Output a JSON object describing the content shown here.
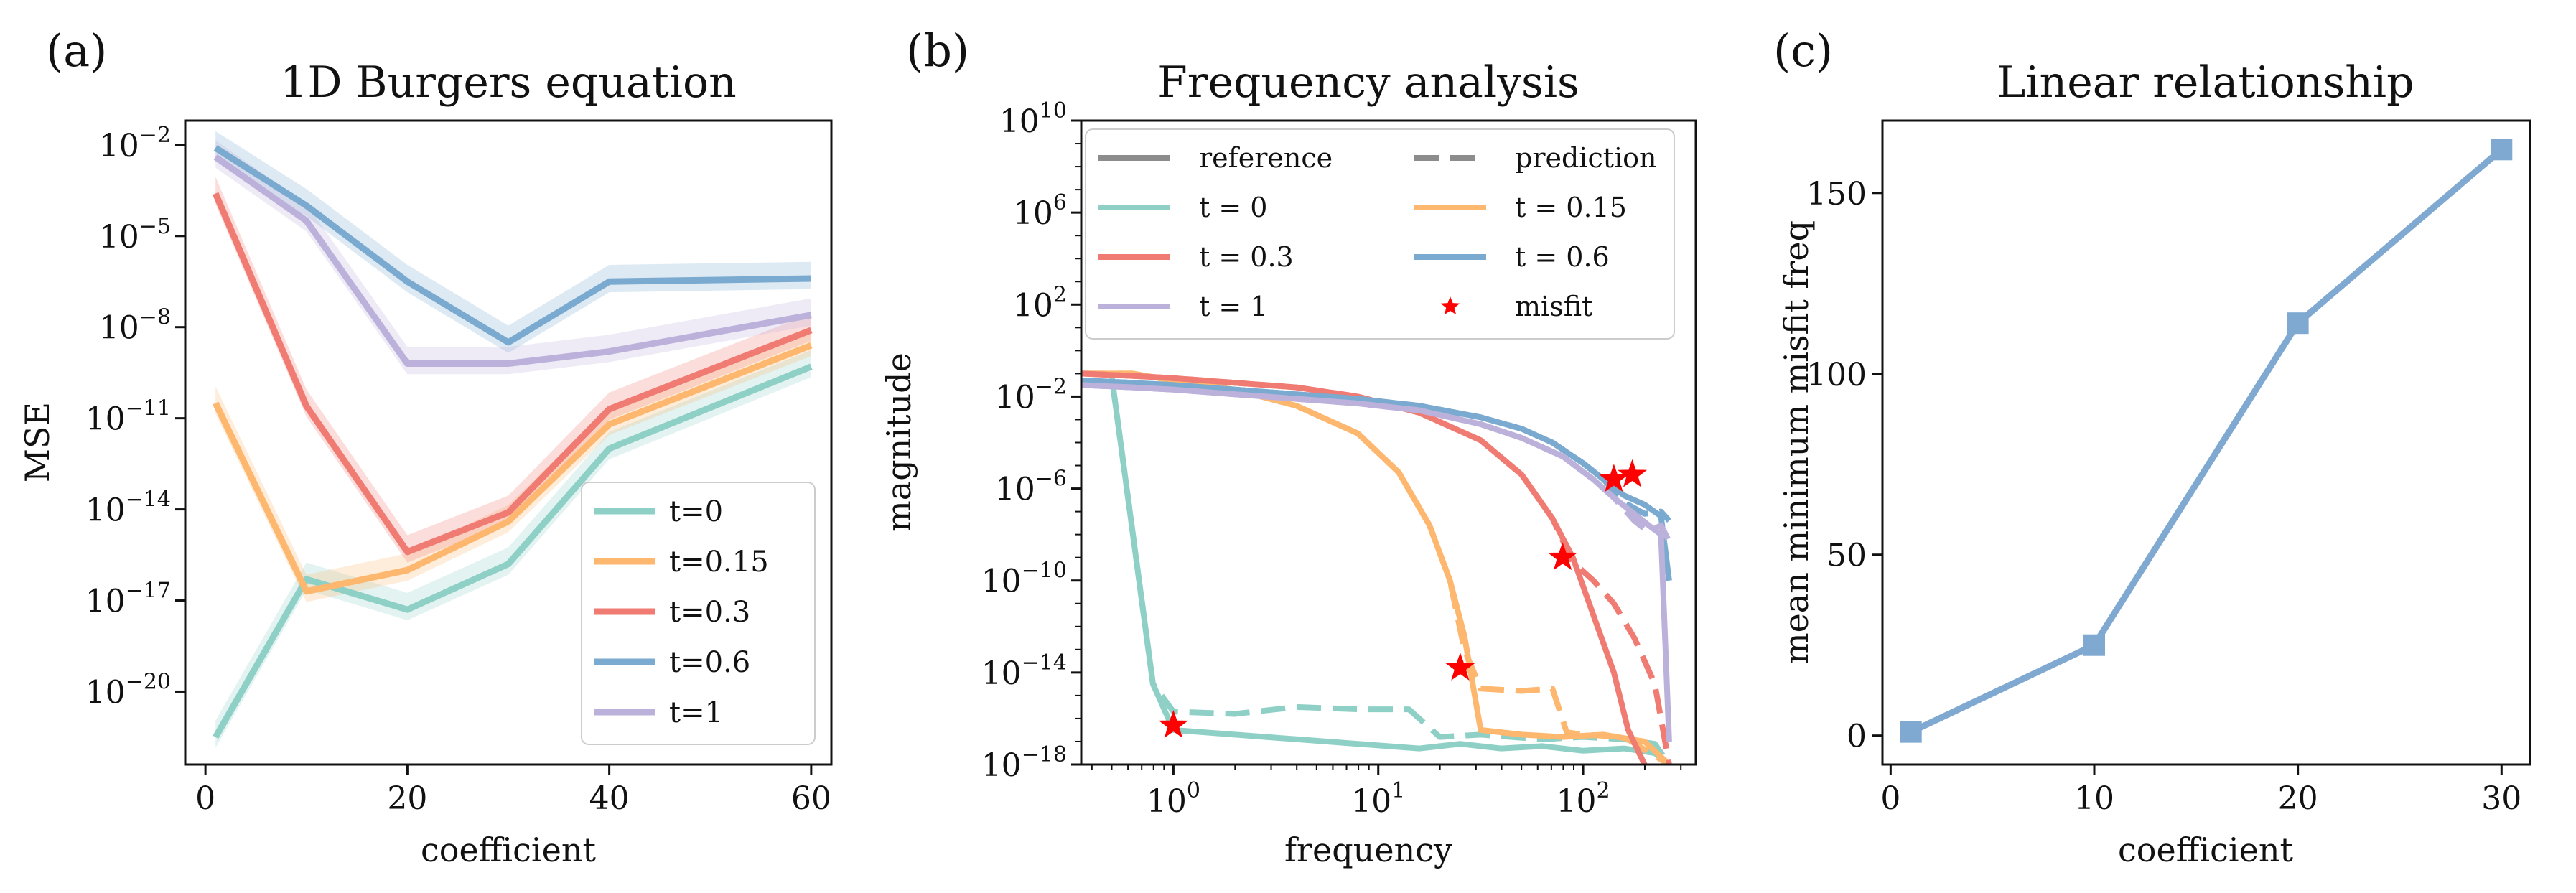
{
  "panels": {
    "a": {
      "label": "(a)",
      "title": "1D Burgers equation",
      "xlabel": "coefficient",
      "ylabel": "MSE"
    },
    "b": {
      "label": "(b)",
      "title": "Frequency analysis",
      "xlabel": "frequency",
      "ylabel": "magnitude"
    },
    "c": {
      "label": "(c)",
      "title": "Linear relationship",
      "xlabel": "coefficient",
      "ylabel": "mean minimum misfit freq"
    }
  },
  "colors": {
    "t0": "#8fd0c6",
    "t015": "#fdb76f",
    "t03": "#f07b72",
    "t06": "#7aaacf",
    "t1": "#bcb1da",
    "reference": "#8c8c8c",
    "misfit": "#ff0000",
    "linear": "#7fa9d1"
  },
  "chart_data": [
    {
      "id": "a",
      "type": "line",
      "title": "1D Burgers equation",
      "xlabel": "coefficient",
      "ylabel": "MSE",
      "xscale": "linear",
      "yscale": "log",
      "xlim": [
        -2,
        62
      ],
      "ylim_log10": [
        -22.4,
        -1.2
      ],
      "xticks": [
        0,
        20,
        40,
        60
      ],
      "yticks": [
        {
          "base": "10",
          "exp": "−2",
          "v": -2
        },
        {
          "base": "10",
          "exp": "−5",
          "v": -5
        },
        {
          "base": "10",
          "exp": "−8",
          "v": -8
        },
        {
          "base": "10",
          "exp": "−11",
          "v": -11
        },
        {
          "base": "10",
          "exp": "−14",
          "v": -14
        },
        {
          "base": "10",
          "exp": "−17",
          "v": -17
        },
        {
          "base": "10",
          "exp": "−20",
          "v": -20
        }
      ],
      "x": [
        1,
        10,
        20,
        30,
        40,
        60
      ],
      "series": [
        {
          "name": "t=0",
          "color_key": "t0",
          "log10_values": [
            -21.5,
            -16.3,
            -17.3,
            -15.8,
            -12.0,
            -9.3
          ]
        },
        {
          "name": "t=0.15",
          "color_key": "t015",
          "log10_values": [
            -10.5,
            -16.7,
            -16.0,
            -14.4,
            -11.2,
            -8.6
          ]
        },
        {
          "name": "t=0.3",
          "color_key": "t03",
          "log10_values": [
            -3.6,
            -10.6,
            -15.4,
            -14.1,
            -10.7,
            -8.1
          ]
        },
        {
          "name": "t=0.6",
          "color_key": "t06",
          "log10_values": [
            -2.1,
            -4.0,
            -6.5,
            -8.5,
            -6.5,
            -6.4
          ]
        },
        {
          "name": "t=1",
          "color_key": "t1",
          "log10_values": [
            -2.4,
            -4.5,
            -9.2,
            -9.2,
            -8.8,
            -7.6
          ]
        }
      ],
      "legend": {
        "position": "lower-right",
        "entries": [
          "t=0",
          "t=0.15",
          "t=0.3",
          "t=0.6",
          "t=1"
        ]
      }
    },
    {
      "id": "b",
      "type": "line",
      "title": "Frequency analysis",
      "xlabel": "frequency",
      "ylabel": "magnitude",
      "xscale": "log",
      "yscale": "log",
      "xlim_log10": [
        -0.45,
        2.55
      ],
      "ylim_log10": [
        -18,
        10
      ],
      "xticks": [
        {
          "base": "10",
          "exp": "0",
          "v": 0
        },
        {
          "base": "10",
          "exp": "1",
          "v": 1
        },
        {
          "base": "10",
          "exp": "2",
          "v": 2
        }
      ],
      "yticks": [
        {
          "base": "10",
          "exp": "−18",
          "v": -18
        },
        {
          "base": "10",
          "exp": "−14",
          "v": -14
        },
        {
          "base": "10",
          "exp": "−10",
          "v": -10
        },
        {
          "base": "10",
          "exp": "−6",
          "v": -6
        },
        {
          "base": "10",
          "exp": "−2",
          "v": -2
        },
        {
          "base": "10",
          "exp": "2",
          "v": 2
        },
        {
          "base": "10",
          "exp": "6",
          "v": 6
        },
        {
          "base": "10",
          "exp": "10",
          "v": 10
        }
      ],
      "series": [
        {
          "name": "t = 0 reference",
          "color_key": "t0",
          "style": "solid",
          "x_log10": [
            -0.3,
            -0.1,
            0.0,
            0.3,
            0.6,
            0.9,
            1.2,
            1.4,
            1.6,
            1.8,
            2.0,
            2.2,
            2.35,
            2.42
          ],
          "y_log10": [
            -1.2,
            -14.5,
            -16.5,
            -16.7,
            -16.9,
            -17.1,
            -17.3,
            -17.1,
            -17.3,
            -17.2,
            -17.4,
            -17.3,
            -17.5,
            -18.0
          ]
        },
        {
          "name": "t = 0 prediction",
          "color_key": "t0",
          "style": "dashed",
          "x_log10": [
            -0.3,
            -0.1,
            0.0,
            0.3,
            0.6,
            0.9,
            1.15,
            1.3,
            1.5,
            1.8,
            2.0,
            2.2,
            2.35,
            2.42
          ],
          "y_log10": [
            -1.2,
            -14.5,
            -15.7,
            -15.8,
            -15.5,
            -15.6,
            -15.6,
            -16.8,
            -16.7,
            -16.9,
            -16.8,
            -16.9,
            -17.1,
            -18.0
          ]
        },
        {
          "name": "t = 0.15 reference",
          "color_key": "t015",
          "style": "solid",
          "x_log10": [
            -0.45,
            -0.2,
            0.0,
            0.3,
            0.6,
            0.9,
            1.1,
            1.25,
            1.35,
            1.42,
            1.5,
            1.7,
            1.9,
            2.1,
            2.3,
            2.42
          ],
          "y_log10": [
            -1.0,
            -1.0,
            -1.3,
            -1.7,
            -2.4,
            -3.6,
            -5.3,
            -7.6,
            -10.0,
            -12.4,
            -16.5,
            -16.7,
            -16.8,
            -16.7,
            -17.0,
            -18.0
          ]
        },
        {
          "name": "t = 0.15 prediction",
          "color_key": "t015",
          "style": "dashed",
          "x_log10": [
            -0.45,
            -0.2,
            0.0,
            0.3,
            0.6,
            0.9,
            1.1,
            1.25,
            1.35,
            1.42,
            1.5,
            1.7,
            1.85,
            1.92,
            2.0,
            2.2,
            2.42
          ],
          "y_log10": [
            -1.0,
            -1.0,
            -1.3,
            -1.7,
            -2.4,
            -3.6,
            -5.3,
            -7.6,
            -10.0,
            -13.0,
            -14.7,
            -14.8,
            -14.7,
            -16.6,
            -16.7,
            -16.8,
            -18.0
          ]
        },
        {
          "name": "t = 0.3 reference",
          "color_key": "t03",
          "style": "solid",
          "x_log10": [
            -0.45,
            -0.2,
            0.0,
            0.3,
            0.6,
            0.9,
            1.2,
            1.5,
            1.7,
            1.85,
            1.95,
            2.05,
            2.15,
            2.22,
            2.3
          ],
          "y_log10": [
            -1.0,
            -1.1,
            -1.2,
            -1.4,
            -1.6,
            -2.0,
            -2.7,
            -3.9,
            -5.4,
            -7.3,
            -9.0,
            -11.5,
            -14.0,
            -16.5,
            -18.0
          ]
        },
        {
          "name": "t = 0.3 prediction",
          "color_key": "t03",
          "style": "dashed",
          "x_log10": [
            -0.45,
            -0.2,
            0.0,
            0.3,
            0.6,
            0.9,
            1.2,
            1.5,
            1.7,
            1.85,
            1.95,
            2.05,
            2.15,
            2.25,
            2.35,
            2.42
          ],
          "y_log10": [
            -1.0,
            -1.1,
            -1.2,
            -1.4,
            -1.6,
            -2.0,
            -2.7,
            -3.9,
            -5.4,
            -7.3,
            -9.2,
            -10.0,
            -11.0,
            -12.5,
            -14.5,
            -18.0
          ]
        },
        {
          "name": "t = 0.6 reference",
          "color_key": "t06",
          "style": "solid",
          "x_log10": [
            -0.45,
            -0.2,
            0.0,
            0.3,
            0.6,
            0.9,
            1.2,
            1.5,
            1.7,
            1.85,
            2.0,
            2.1,
            2.2,
            2.3,
            2.38,
            2.42
          ],
          "y_log10": [
            -1.3,
            -1.4,
            -1.5,
            -1.7,
            -1.9,
            -2.1,
            -2.4,
            -2.9,
            -3.4,
            -4.0,
            -4.9,
            -5.6,
            -6.3,
            -6.7,
            -7.2,
            -10.0
          ]
        },
        {
          "name": "t = 0.6 prediction",
          "color_key": "t06",
          "style": "dashed",
          "x_log10": [
            -0.45,
            -0.2,
            0.0,
            0.3,
            0.6,
            0.9,
            1.2,
            1.5,
            1.7,
            1.85,
            2.0,
            2.1,
            2.2,
            2.3,
            2.38,
            2.42
          ],
          "y_log10": [
            -1.3,
            -1.4,
            -1.5,
            -1.7,
            -1.9,
            -2.1,
            -2.4,
            -2.9,
            -3.4,
            -4.0,
            -4.9,
            -5.6,
            -6.6,
            -7.1,
            -7.0,
            -7.4
          ]
        },
        {
          "name": "t = 1 reference",
          "color_key": "t1",
          "style": "solid",
          "x_log10": [
            -0.45,
            -0.2,
            0.0,
            0.3,
            0.6,
            0.9,
            1.2,
            1.5,
            1.7,
            1.9,
            2.05,
            2.15,
            2.25,
            2.32,
            2.38,
            2.42
          ],
          "y_log10": [
            -1.5,
            -1.6,
            -1.7,
            -1.9,
            -2.1,
            -2.3,
            -2.6,
            -3.2,
            -3.8,
            -4.6,
            -5.6,
            -6.4,
            -7.1,
            -7.6,
            -8.0,
            -17.0
          ]
        },
        {
          "name": "t = 1 prediction",
          "color_key": "t1",
          "style": "dashed",
          "x_log10": [
            -0.45,
            -0.2,
            0.0,
            0.3,
            0.6,
            0.9,
            1.2,
            1.5,
            1.7,
            1.9,
            2.05,
            2.15,
            2.25,
            2.32,
            2.38,
            2.42
          ],
          "y_log10": [
            -1.5,
            -1.6,
            -1.7,
            -1.9,
            -2.1,
            -2.3,
            -2.6,
            -3.2,
            -3.8,
            -4.6,
            -5.6,
            -6.4,
            -7.4,
            -7.9,
            -7.6,
            -8.3
          ]
        }
      ],
      "misfit_points": [
        {
          "x_log10": 0.0,
          "y_log10": -16.3
        },
        {
          "x_log10": 1.4,
          "y_log10": -13.8
        },
        {
          "x_log10": 1.9,
          "y_log10": -9.0
        },
        {
          "x_log10": 2.15,
          "y_log10": -5.6
        },
        {
          "x_log10": 2.24,
          "y_log10": -5.4
        }
      ],
      "legend": {
        "position": "top",
        "entries": [
          {
            "label": "reference",
            "kind": "solid-gray"
          },
          {
            "label": "prediction",
            "kind": "dashed-gray"
          },
          {
            "label": "t = 0",
            "kind": "line",
            "color_key": "t0"
          },
          {
            "label": "t = 0.15",
            "kind": "line",
            "color_key": "t015"
          },
          {
            "label": "t = 0.3",
            "kind": "line",
            "color_key": "t03"
          },
          {
            "label": "t = 0.6",
            "kind": "line",
            "color_key": "t06"
          },
          {
            "label": "t = 1",
            "kind": "line",
            "color_key": "t1"
          },
          {
            "label": "misfit",
            "kind": "star"
          }
        ]
      }
    },
    {
      "id": "c",
      "type": "line",
      "title": "Linear relationship",
      "xlabel": "coefficient",
      "ylabel": "mean minimum misfit freq",
      "xscale": "linear",
      "yscale": "linear",
      "xlim": [
        -0.4,
        31.4
      ],
      "ylim": [
        -8,
        170
      ],
      "xticks": [
        0,
        10,
        20,
        30
      ],
      "yticks": [
        0,
        50,
        100,
        150
      ],
      "x": [
        1,
        10,
        20,
        30
      ],
      "values": [
        1,
        25,
        114,
        162
      ],
      "marker": "square",
      "color_key": "linear"
    }
  ]
}
